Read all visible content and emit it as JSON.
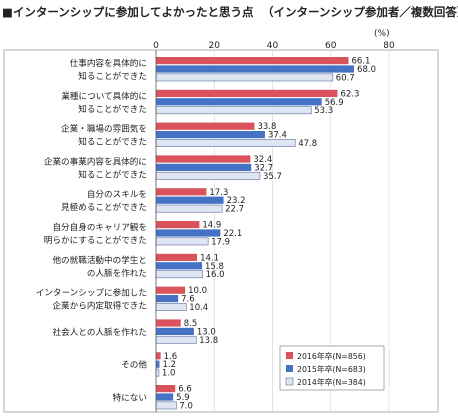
{
  "chart_data": {
    "type": "bar",
    "orientation": "horizontal",
    "title": "■インターンシップに参加してよかったと思う点",
    "subtitle": "（インターンシップ参加者／複数回答）",
    "unit_label": "(%)",
    "xlim": [
      0,
      80
    ],
    "x_ticks": [
      "0",
      "20",
      "40",
      "60",
      "80"
    ],
    "grid": true,
    "legend_position": "bottom-right",
    "categories": [
      [
        "仕事内容を具体的に",
        "知ることができた"
      ],
      [
        "業種について具体的に",
        "知ることができた"
      ],
      [
        "企業・職場の雰囲気を",
        "知ることができた"
      ],
      [
        "企業の事業内容を具体的に",
        "知ることができた"
      ],
      [
        "自分のスキルを",
        "見極めることができた"
      ],
      [
        "自分自身のキャリア観を",
        "明らかにすることができた"
      ],
      [
        "他の就職活動中の学生と",
        "の人脈を作れた"
      ],
      [
        "インターンシップに参加した",
        "企業から内定取得できた"
      ],
      [
        "社会人との人脈を作れた"
      ],
      [
        "その他"
      ],
      [
        "特にない"
      ]
    ],
    "series": [
      {
        "name": "2016年卒(N=856)",
        "color": "#d9525c",
        "values": [
          66.1,
          62.3,
          33.8,
          32.4,
          17.3,
          14.9,
          14.1,
          10.0,
          8.5,
          1.6,
          6.6
        ],
        "labels": [
          "66.1",
          "62.3",
          "33.8",
          "32.4",
          "17.3",
          "14.9",
          "14.1",
          "10.0",
          "8.5",
          "1.6",
          "6.6"
        ]
      },
      {
        "name": "2015年卒(N=683)",
        "color": "#4472c4",
        "values": [
          68.0,
          56.9,
          37.4,
          32.7,
          23.2,
          22.1,
          15.8,
          7.6,
          13.0,
          1.2,
          5.9
        ],
        "labels": [
          "68.0",
          "56.9",
          "37.4",
          "32.7",
          "23.2",
          "22.1",
          "15.8",
          "7.6",
          "13.0",
          "1.2",
          "5.9"
        ]
      },
      {
        "name": "2014年卒(N=384)",
        "color": "#dfe6f3",
        "values": [
          60.7,
          53.3,
          47.8,
          35.7,
          22.7,
          17.9,
          16.0,
          10.4,
          13.8,
          1.0,
          7.0
        ],
        "labels": [
          "60.7",
          "53.3",
          "47.8",
          "35.7",
          "22.7",
          "17.9",
          "16.0",
          "10.4",
          "13.8",
          "1.0",
          "7.0"
        ]
      }
    ]
  }
}
